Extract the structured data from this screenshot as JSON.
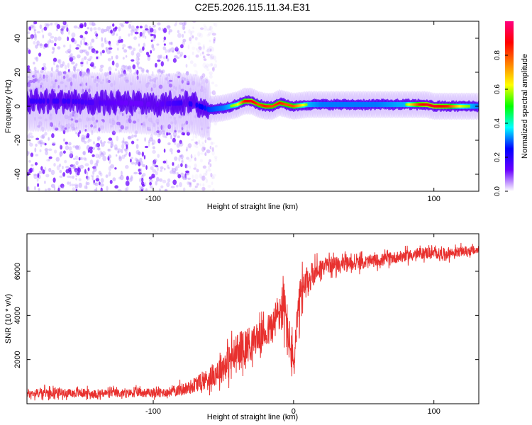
{
  "figure": {
    "title": "C2E5.2026.115.11.34.E31"
  },
  "colorbar": {
    "label": "Normalized spectral amplitude",
    "ticks": [
      "0.0",
      "0.2",
      "0.4",
      "0.6",
      "0.8"
    ],
    "tick_values": [
      0.0,
      0.2,
      0.4,
      0.6,
      0.8
    ],
    "stops": [
      "#ffffff",
      "#6a00ff",
      "#0000ff",
      "#00ffff",
      "#00ff00",
      "#ffff00",
      "#ff8000",
      "#ff0000",
      "#ff0080"
    ]
  },
  "chart_data": [
    {
      "type": "heatmap",
      "title": "C2E5.2026.115.11.34.E31",
      "xlabel": "Height of straight line (km)",
      "ylabel": "Frequency (Hz)",
      "xlim": [
        -190,
        132
      ],
      "ylim": [
        -50,
        50
      ],
      "x_ticks": [
        -100,
        100
      ],
      "x_tick_labels": [
        "-100",
        "100"
      ],
      "y_ticks": [
        40,
        20,
        0,
        -20,
        -40
      ],
      "y_tick_labels": [
        "40",
        "20",
        "0",
        "-20",
        "-40"
      ],
      "colorbar_label": "Normalized spectral amplitude",
      "ridge": {
        "x": [
          -185,
          -160,
          -140,
          -120,
          -100,
          -80,
          -70,
          -60,
          -50,
          -40,
          -35,
          -30,
          -25,
          -20,
          -15,
          -10,
          -5,
          0,
          10,
          20,
          40,
          60,
          80,
          90,
          95,
          100,
          110,
          120,
          132
        ],
        "y_hz": [
          3,
          3,
          2,
          2,
          1,
          2,
          1,
          -2,
          -1,
          1,
          3,
          3,
          1,
          0,
          0,
          2,
          1,
          0,
          1,
          1,
          1,
          1,
          1,
          1,
          1,
          0,
          0,
          0,
          0
        ],
        "amplitude": [
          0.3,
          0.3,
          0.25,
          0.2,
          0.2,
          0.3,
          0.35,
          0.45,
          0.5,
          0.6,
          0.85,
          0.9,
          0.8,
          0.85,
          0.8,
          0.85,
          0.8,
          0.8,
          0.55,
          0.5,
          0.5,
          0.5,
          0.55,
          0.85,
          0.9,
          0.9,
          0.85,
          0.6,
          0.5
        ]
      },
      "scatter_region_km": [
        -190,
        -75
      ]
    },
    {
      "type": "line",
      "xlabel": "Height of straight line (km)",
      "ylabel": "SNR (10 * v/v)",
      "xlim": [
        -190,
        132
      ],
      "ylim": [
        0,
        7700
      ],
      "x_ticks": [
        -100,
        0,
        100
      ],
      "x_tick_labels": [
        "-100",
        "0",
        "100"
      ],
      "y_ticks": [
        2000,
        4000,
        6000
      ],
      "y_tick_labels": [
        "2000",
        "4000",
        "6000"
      ],
      "series": [
        {
          "name": "SNR",
          "color": "#e8312f",
          "x": [
            -190,
            -180,
            -170,
            -160,
            -150,
            -140,
            -130,
            -120,
            -110,
            -100,
            -90,
            -80,
            -75,
            -70,
            -65,
            -60,
            -55,
            -50,
            -45,
            -40,
            -35,
            -30,
            -25,
            -20,
            -15,
            -10,
            -7,
            -5,
            -2,
            0,
            2,
            5,
            10,
            15,
            20,
            25,
            30,
            40,
            50,
            60,
            70,
            80,
            90,
            95,
            100,
            110,
            120,
            132
          ],
          "values": [
            450,
            500,
            520,
            480,
            500,
            430,
            500,
            460,
            520,
            480,
            520,
            650,
            700,
            900,
            1000,
            1200,
            1400,
            1700,
            2000,
            2300,
            2600,
            2800,
            3000,
            3200,
            3500,
            4200,
            4500,
            3600,
            2500,
            1700,
            3200,
            4800,
            5500,
            6000,
            6200,
            6300,
            6300,
            6350,
            6400,
            6500,
            6600,
            6700,
            6800,
            6850,
            6800,
            6800,
            6900,
            6950
          ],
          "noise": [
            250,
            260,
            250,
            240,
            250,
            230,
            240,
            240,
            250,
            250,
            260,
            350,
            400,
            450,
            500,
            600,
            700,
            900,
            1000,
            1100,
            1100,
            900,
            800,
            900,
            1000,
            1300,
            1400,
            1500,
            1200,
            900,
            1200,
            1300,
            900,
            700,
            500,
            450,
            450,
            400,
            380,
            350,
            330,
            330,
            330,
            330,
            320,
            300,
            280,
            260
          ]
        }
      ]
    }
  ]
}
